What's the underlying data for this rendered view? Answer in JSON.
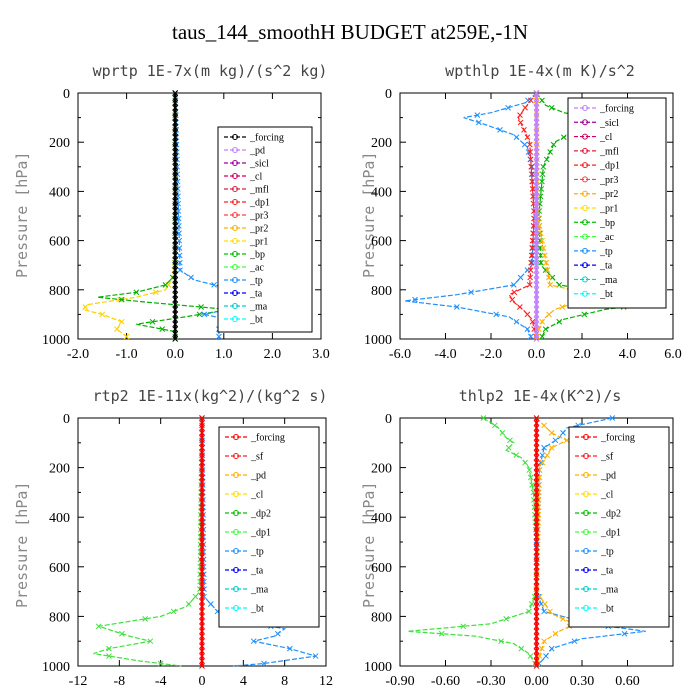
{
  "title": "taus_144_smoothH  BUDGET at259E,-1N",
  "chart_data": [
    {
      "type": "line",
      "title": "wprtp  1E-7x(m kg)/(s^2 kg)",
      "ylabel": "Pressure [hPa]",
      "xlim": [
        -2.0,
        3.0
      ],
      "ylim": [
        0,
        1000
      ],
      "y_reversed": true,
      "xticks": [
        -2.0,
        -1.0,
        0.0,
        1.0,
        2.0,
        3.0
      ],
      "xtick_labels": [
        "-2.0",
        "-1.0",
        "0.0",
        "1.0",
        "2.0",
        "3.0"
      ],
      "yticks": [
        0,
        200,
        400,
        600,
        800,
        1000
      ],
      "ytick_labels": [
        "0",
        "200",
        "400",
        "600",
        "800",
        "1000"
      ],
      "legend_position": "top-right",
      "legend": [
        "_forcing",
        "_pd",
        "_sicl",
        "_cl",
        "_mfl",
        "_dp1",
        "_pr3",
        "_pr2",
        "_pr1",
        "_bp",
        "_ac",
        "_tp",
        "_ta",
        "_ma",
        "_bt"
      ],
      "legend_colors": [
        "#000000",
        "#c080ff",
        "#a000a0",
        "#d00060",
        "#e02040",
        "#ff2020",
        "#ff4040",
        "#ffb000",
        "#ffe000",
        "#00c000",
        "#40ff40",
        "#2090ff",
        "#0000ff",
        "#00d0d0",
        "#00ffff"
      ],
      "series": [
        {
          "name": "_pr1",
          "color": "#ffd000",
          "y": [
            0,
            700,
            750,
            800,
            830,
            860,
            880,
            900,
            930,
            960,
            990,
            1000
          ],
          "x": [
            0,
            0,
            -0.05,
            -0.2,
            -0.8,
            -1.8,
            -1.9,
            -1.5,
            -1.1,
            -1.2,
            -1.0,
            -1.0
          ]
        },
        {
          "name": "_bp",
          "color": "#00b000",
          "y": [
            0,
            740,
            780,
            810,
            830,
            850,
            880,
            910,
            940,
            970,
            1000
          ],
          "x": [
            0,
            0,
            -0.2,
            -0.8,
            -1.6,
            -0.6,
            1.1,
            0.2,
            -0.8,
            0.0,
            0.0
          ]
        },
        {
          "name": "_tp",
          "color": "#2090ff",
          "y": [
            0,
            720,
            760,
            800,
            830,
            845,
            870,
            900,
            930,
            960,
            1000
          ],
          "x": [
            0,
            0.1,
            0.4,
            1.2,
            2.2,
            2.35,
            1.3,
            0.6,
            1.3,
            0.9,
            0.9
          ]
        },
        {
          "name": "_forcing",
          "color": "#000000",
          "y": [
            0,
            1000
          ],
          "x": [
            0.0,
            0.0
          ]
        }
      ]
    },
    {
      "type": "line",
      "title": "wpthlp  1E-4x(m K)/s^2",
      "ylabel": "Pressure [hPa]",
      "xlim": [
        -6.0,
        6.0
      ],
      "ylim": [
        0,
        1000
      ],
      "y_reversed": true,
      "xticks": [
        -6.0,
        -4.0,
        -2.0,
        0.0,
        2.0,
        4.0,
        6.0
      ],
      "xtick_labels": [
        "-6.0",
        "-4.0",
        "-2.0",
        "0.0",
        "2.0",
        "4.0",
        "6.0"
      ],
      "yticks": [
        0,
        200,
        400,
        600,
        800,
        1000
      ],
      "ytick_labels": [
        "0",
        "200",
        "400",
        "600",
        "800",
        "1000"
      ],
      "legend_position": "top-right",
      "legend": [
        "_forcing",
        "_sicl",
        "_cl",
        "_mfl",
        "_dp1",
        "_pr3",
        "_pr2",
        "_pr1",
        "_bp",
        "_ac",
        "_tp",
        "_ta",
        "_ma",
        "_bt"
      ],
      "legend_colors": [
        "#c080ff",
        "#a000a0",
        "#d00060",
        "#e02040",
        "#ff2020",
        "#ff4040",
        "#ffb000",
        "#ffe000",
        "#00c000",
        "#40ff40",
        "#2090ff",
        "#0000ff",
        "#00d0d0",
        "#00ffff"
      ],
      "series": [
        {
          "name": "_tp",
          "color": "#2090ff",
          "y": [
            0,
            40,
            80,
            100,
            130,
            170,
            220,
            300,
            500,
            700,
            780,
            820,
            845,
            870,
            910,
            960,
            1000
          ],
          "x": [
            0,
            -0.5,
            -2.0,
            -3.2,
            -2.2,
            -1.0,
            -0.4,
            -0.2,
            -0.1,
            -0.2,
            -1.0,
            -3.5,
            -5.8,
            -3.5,
            -1.2,
            -0.4,
            -0.2
          ]
        },
        {
          "name": "_bp",
          "color": "#00b000",
          "y": [
            0,
            50,
            80,
            110,
            150,
            200,
            300,
            500,
            700,
            780,
            820,
            850,
            880,
            920,
            960,
            1000
          ],
          "x": [
            0,
            0.4,
            1.2,
            3.0,
            1.8,
            0.8,
            0.3,
            0.1,
            0.2,
            1.0,
            3.5,
            5.5,
            3.0,
            1.2,
            0.4,
            0.2
          ]
        },
        {
          "name": "_cl",
          "color": "#ff2020",
          "y": [
            0,
            60,
            100,
            140,
            200,
            500,
            780,
            820,
            850,
            880,
            920,
            1000
          ],
          "x": [
            0,
            -0.5,
            -0.8,
            -0.6,
            -0.3,
            -0.1,
            -0.3,
            -1.2,
            -1.0,
            -0.6,
            -0.2,
            0.0
          ]
        },
        {
          "name": "_pr2",
          "color": "#ffb000",
          "y": [
            0,
            500,
            780,
            820,
            850,
            880,
            920,
            960,
            1000
          ],
          "x": [
            0,
            0.05,
            0.6,
            2.5,
            1.8,
            0.8,
            0.3,
            0.1,
            0.0
          ]
        },
        {
          "name": "_forcing",
          "color": "#c080ff",
          "y": [
            0,
            1000
          ],
          "x": [
            0.0,
            0.0
          ]
        }
      ]
    },
    {
      "type": "line",
      "title": "rtp2  1E-11x(kg^2)/(kg^2 s)",
      "ylabel": "Pressure [hPa]",
      "xlim": [
        -12,
        12
      ],
      "ylim": [
        0,
        1000
      ],
      "y_reversed": true,
      "xticks": [
        -12,
        -8,
        -4,
        0,
        4,
        8,
        12
      ],
      "xtick_labels": [
        "-12",
        "-8",
        "-4",
        "0",
        "4",
        "8",
        "12"
      ],
      "yticks": [
        0,
        200,
        400,
        600,
        800,
        1000
      ],
      "ytick_labels": [
        "0",
        "200",
        "400",
        "600",
        "800",
        "1000"
      ],
      "legend_position": "top-right",
      "legend": [
        "_forcing",
        "_sf",
        "_pd",
        "_cl",
        "_dp2",
        "_dp1",
        "_tp",
        "_ta",
        "_ma",
        "_bt"
      ],
      "legend_colors": [
        "#ff0000",
        "#ff2020",
        "#ffb000",
        "#ffe000",
        "#00c000",
        "#40ff40",
        "#2090ff",
        "#0000ff",
        "#00d0d0",
        "#00ffff"
      ],
      "series": [
        {
          "name": "_dp1",
          "color": "#40e040",
          "y": [
            0,
            700,
            760,
            800,
            840,
            860,
            880,
            900,
            930,
            950,
            980,
            1000
          ],
          "x": [
            0,
            -0.2,
            -1.5,
            -4.0,
            -10.0,
            -8.5,
            -7.0,
            -5.0,
            -9.0,
            -10.5,
            -6.0,
            -2.0
          ]
        },
        {
          "name": "_tp",
          "color": "#2090ff",
          "y": [
            0,
            720,
            780,
            820,
            850,
            880,
            900,
            930,
            960,
            990,
            1000
          ],
          "x": [
            0,
            0.2,
            1.5,
            4.0,
            8.0,
            7.0,
            5.0,
            8.5,
            11.0,
            6.0,
            3.0
          ]
        },
        {
          "name": "_forcing",
          "color": "#ff0000",
          "y": [
            0,
            1000
          ],
          "x": [
            0.0,
            0.0
          ]
        }
      ]
    },
    {
      "type": "line",
      "title": "thlp2  1E-4x(K^2)/s",
      "ylabel": "Pressure [hPa]",
      "xlim": [
        -0.9,
        0.9
      ],
      "ylim": [
        0,
        1000
      ],
      "y_reversed": true,
      "xticks": [
        -0.9,
        -0.6,
        -0.3,
        0.0,
        0.3,
        0.6
      ],
      "xtick_labels": [
        "-0.90",
        "-0.60",
        "-0.30",
        "0.00",
        "0.30",
        "0.60"
      ],
      "yticks": [
        0,
        200,
        400,
        600,
        800,
        1000
      ],
      "ytick_labels": [
        "0",
        "200",
        "400",
        "600",
        "800",
        "1000"
      ],
      "legend_position": "top-right",
      "legend": [
        "_forcing",
        "_sf",
        "_pd",
        "_cl",
        "_dp2",
        "_dp1",
        "_tp",
        "_ta",
        "_ma",
        "_bt"
      ],
      "legend_colors": [
        "#ff0000",
        "#ff2020",
        "#ffb000",
        "#ffe000",
        "#00c000",
        "#40ff40",
        "#2090ff",
        "#0000ff",
        "#00d0d0",
        "#00ffff"
      ],
      "series": [
        {
          "name": "_dp1",
          "color": "#40e040",
          "y": [
            0,
            40,
            80,
            100,
            130,
            160,
            200,
            300,
            500,
            700,
            780,
            830,
            860,
            880,
            910,
            950,
            1000
          ],
          "x": [
            -0.35,
            -0.25,
            -0.2,
            -0.15,
            -0.2,
            -0.1,
            -0.05,
            -0.02,
            0.0,
            0.0,
            -0.05,
            -0.3,
            -0.85,
            -0.4,
            -0.15,
            -0.05,
            0.0
          ]
        },
        {
          "name": "_tp",
          "color": "#2090ff",
          "y": [
            0,
            40,
            80,
            120,
            200,
            500,
            700,
            780,
            830,
            860,
            890,
            930,
            970,
            1000
          ],
          "x": [
            0.5,
            0.2,
            0.15,
            0.05,
            0.02,
            0.0,
            0.0,
            0.05,
            0.35,
            0.72,
            0.3,
            0.1,
            0.05,
            0.0
          ]
        },
        {
          "name": "_pd",
          "color": "#ffb000",
          "y": [
            0,
            60,
            90,
            120,
            200,
            700,
            790,
            830,
            860,
            900,
            1000
          ],
          "x": [
            0,
            0.1,
            0.2,
            0.1,
            0.02,
            0.0,
            0.1,
            0.25,
            0.15,
            0.05,
            0.0
          ]
        },
        {
          "name": "_forcing",
          "color": "#ff0000",
          "y": [
            0,
            1000
          ],
          "x": [
            0.0,
            0.0
          ]
        }
      ]
    }
  ]
}
